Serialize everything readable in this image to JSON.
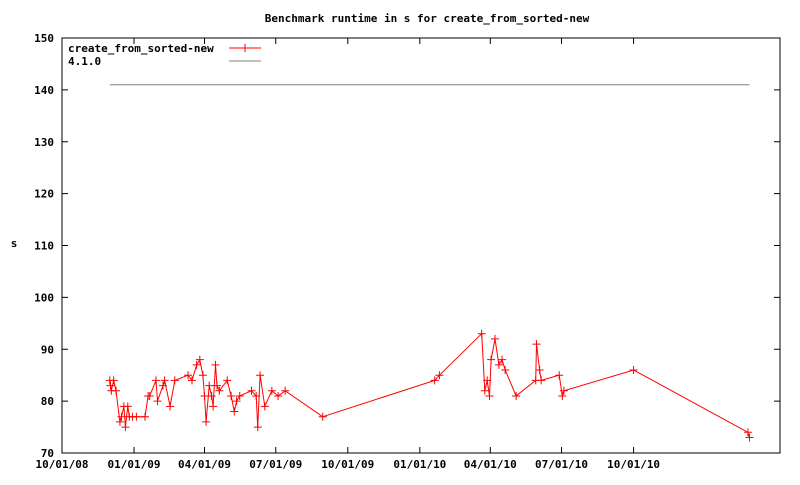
{
  "chart_data": {
    "type": "line",
    "title": "Benchmark runtime in s for create_from_sorted-new",
    "xlabel": "",
    "ylabel": "s",
    "xlim": [
      "2008-10-01",
      "2011-04-06"
    ],
    "ylim": [
      70,
      150
    ],
    "x_ticks": [
      "10/01/08",
      "01/01/09",
      "04/01/09",
      "07/01/09",
      "10/01/09",
      "01/01/10",
      "04/01/10",
      "07/01/10",
      "10/01/10"
    ],
    "x_tick_dates": [
      "2008-10-01",
      "2009-01-01",
      "2009-04-01",
      "2009-07-01",
      "2009-10-01",
      "2010-01-01",
      "2010-04-01",
      "2010-07-01",
      "2010-10-01"
    ],
    "y_ticks": [
      70,
      80,
      90,
      100,
      110,
      120,
      130,
      140,
      150
    ],
    "grid": false,
    "legend_position": "top-left",
    "series": [
      {
        "name": "create_from_sorted-new",
        "color": "#ff0000",
        "marker": "plus",
        "points": [
          [
            "2008-12-01",
            84
          ],
          [
            "2008-12-02",
            83
          ],
          [
            "2008-12-03",
            82
          ],
          [
            "2008-12-06",
            84
          ],
          [
            "2008-12-09",
            82
          ],
          [
            "2008-12-14",
            76
          ],
          [
            "2008-12-16",
            77
          ],
          [
            "2008-12-19",
            79
          ],
          [
            "2008-12-21",
            75
          ],
          [
            "2008-12-24",
            79
          ],
          [
            "2008-12-26",
            77
          ],
          [
            "2008-12-30",
            77
          ],
          [
            "2009-01-04",
            77
          ],
          [
            "2009-01-15",
            77
          ],
          [
            "2009-01-19",
            81
          ],
          [
            "2009-01-21",
            81
          ],
          [
            "2009-01-29",
            84
          ],
          [
            "2009-01-31",
            80
          ],
          [
            "2009-02-07",
            83
          ],
          [
            "2009-02-09",
            84
          ],
          [
            "2009-02-16",
            79
          ],
          [
            "2009-02-22",
            84
          ],
          [
            "2009-03-11",
            85
          ],
          [
            "2009-03-16",
            84
          ],
          [
            "2009-03-22",
            87
          ],
          [
            "2009-03-26",
            88
          ],
          [
            "2009-03-30",
            85
          ],
          [
            "2009-04-01",
            81
          ],
          [
            "2009-04-03",
            76
          ],
          [
            "2009-04-07",
            83
          ],
          [
            "2009-04-10",
            81
          ],
          [
            "2009-04-12",
            79
          ],
          [
            "2009-04-15",
            87
          ],
          [
            "2009-04-17",
            83
          ],
          [
            "2009-04-20",
            82
          ],
          [
            "2009-04-30",
            84
          ],
          [
            "2009-05-05",
            81
          ],
          [
            "2009-05-09",
            78
          ],
          [
            "2009-05-12",
            80
          ],
          [
            "2009-05-16",
            81
          ],
          [
            "2009-05-31",
            82
          ],
          [
            "2009-06-06",
            81
          ],
          [
            "2009-06-08",
            75
          ],
          [
            "2009-06-11",
            85
          ],
          [
            "2009-06-17",
            79
          ],
          [
            "2009-06-26",
            82
          ],
          [
            "2009-07-04",
            81
          ],
          [
            "2009-07-13",
            82
          ],
          [
            "2009-08-30",
            77
          ],
          [
            "2010-01-20",
            84
          ],
          [
            "2010-01-26",
            85
          ],
          [
            "2010-03-21",
            93
          ],
          [
            "2010-03-25",
            82
          ],
          [
            "2010-03-28",
            84
          ],
          [
            "2010-03-31",
            81
          ],
          [
            "2010-04-02",
            88
          ],
          [
            "2010-04-07",
            92
          ],
          [
            "2010-04-12",
            87
          ],
          [
            "2010-04-16",
            88
          ],
          [
            "2010-04-20",
            86
          ],
          [
            "2010-05-04",
            81
          ],
          [
            "2010-05-29",
            84
          ],
          [
            "2010-05-30",
            91
          ],
          [
            "2010-06-03",
            86
          ],
          [
            "2010-06-05",
            84
          ],
          [
            "2010-06-28",
            85
          ],
          [
            "2010-07-02",
            81
          ],
          [
            "2010-07-04",
            82
          ],
          [
            "2010-10-01",
            86
          ],
          [
            "2011-02-24",
            74
          ],
          [
            "2011-02-26",
            73
          ]
        ]
      },
      {
        "name": "4.1.0",
        "color": "#808080",
        "marker": "none",
        "points": [
          [
            "2008-12-01",
            141
          ],
          [
            "2011-02-26",
            141
          ]
        ]
      }
    ]
  }
}
